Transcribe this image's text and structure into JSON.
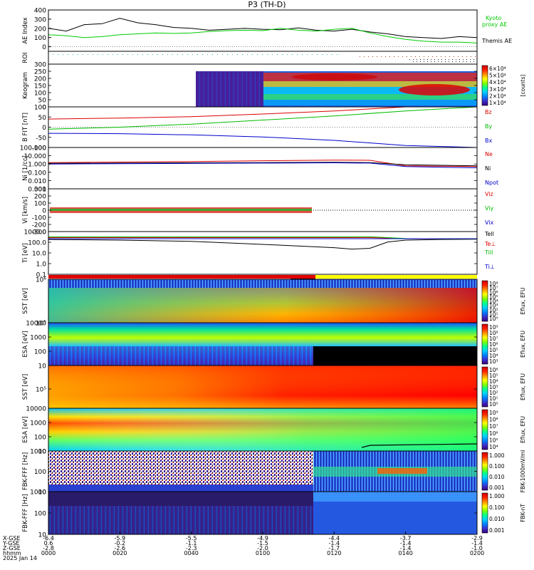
{
  "title": "P3 (TH-D)",
  "colors": {
    "kyoto": "#00cc00",
    "themis": "#000000",
    "red": "#dd0000",
    "green": "#00bb00",
    "blue": "#0000cc",
    "black": "#000000"
  },
  "colorbar_stops": [
    "#3a007a",
    "#3a2fd0",
    "#0080ff",
    "#00d0ff",
    "#00ff90",
    "#80ff00",
    "#ffff00",
    "#ff9000",
    "#ff2000",
    "#d00000"
  ],
  "x_axis": {
    "row_labels": [
      "X-GSE",
      "Y-GSE",
      "Z-GSE",
      "hhmm",
      "2025 Jan 14"
    ],
    "ticks": [
      {
        "x": "-6.4",
        "y": "0.6",
        "z": "-2.8",
        "t": "0000"
      },
      {
        "x": "-5.9",
        "y": "-0.2",
        "z": "-2.6",
        "t": "0020"
      },
      {
        "x": "-5.5",
        "y": "-1.1",
        "z": "-2.3",
        "t": "0040"
      },
      {
        "x": "-4.9",
        "y": "-1.5",
        "z": "-2.0",
        "t": "0100"
      },
      {
        "x": "-4.4",
        "y": "-1.4",
        "z": "-1.7",
        "t": "0120"
      },
      {
        "x": "-3.7",
        "y": "-1.4",
        "z": "-1.4",
        "t": "0140"
      },
      {
        "x": "-2.9",
        "y": "-1.4",
        "z": "-1.0",
        "t": "0200"
      }
    ]
  },
  "chart_data": [
    {
      "type": "line",
      "ylabel": "AE Index",
      "ylim": [
        -50,
        400
      ],
      "yticks": [
        "400",
        "300",
        "200",
        "100",
        "0"
      ],
      "x_minutes": [
        0,
        5,
        10,
        15,
        20,
        25,
        30,
        35,
        40,
        45,
        50,
        55,
        60,
        65,
        70,
        75,
        80,
        85,
        90,
        95,
        100,
        105,
        110,
        115,
        120
      ],
      "series": [
        {
          "name": "Themis AE",
          "color": "#000000",
          "values": [
            200,
            170,
            240,
            250,
            310,
            260,
            240,
            210,
            200,
            180,
            190,
            200,
            190,
            185,
            205,
            180,
            170,
            190,
            160,
            140,
            110,
            100,
            90,
            110,
            100
          ]
        },
        {
          "name": "Kyoto proxy AE",
          "color": "#00cc00",
          "values": [
            130,
            120,
            100,
            110,
            130,
            140,
            150,
            145,
            150,
            165,
            175,
            180,
            175,
            200,
            180,
            170,
            190,
            200,
            150,
            110,
            80,
            60,
            50,
            50,
            40
          ]
        }
      ],
      "legend": [
        "Kyoto",
        "proxy AE",
        "Themis AE"
      ]
    },
    {
      "type": "line",
      "ylabel": "ROI"
    },
    {
      "type": "heatmap",
      "ylabel": "Keogram",
      "ylim": [
        0,
        300
      ],
      "yticks": [
        "300",
        "250",
        "200",
        "150",
        "100",
        "50",
        "0"
      ],
      "colorbar_label": "[counts]",
      "colorbar_ticks": [
        "6×10⁴",
        "5×10⁴",
        "4×10⁴",
        "3×10⁴",
        "2×10⁴",
        "1×10⁴"
      ]
    },
    {
      "type": "line",
      "ylabel": "B FIT [nT]",
      "ylim": [
        -100,
        100
      ],
      "yticks": [
        "100",
        "50",
        "0",
        "-50",
        "-100"
      ],
      "x_minutes": [
        0,
        20,
        40,
        60,
        80,
        100,
        120
      ],
      "series": [
        {
          "name": "Bz",
          "color": "#dd0000",
          "values": [
            40,
            45,
            52,
            65,
            80,
            100,
            120
          ]
        },
        {
          "name": "By",
          "color": "#00bb00",
          "values": [
            -10,
            0,
            15,
            35,
            55,
            80,
            105
          ]
        },
        {
          "name": "Bx",
          "color": "#0000cc",
          "values": [
            -30,
            -32,
            -38,
            -48,
            -65,
            -90,
            -120
          ]
        }
      ]
    },
    {
      "type": "line",
      "ylabel": "Ni [1/cc]",
      "yticks": [
        "100.000",
        "10.000",
        "1.000",
        "0.100",
        "0.010",
        "0.001"
      ],
      "x_minutes": [
        0,
        20,
        40,
        60,
        80,
        90,
        100,
        110,
        120
      ],
      "series": [
        {
          "name": "Ne",
          "color": "#dd0000",
          "values": [
            1.5,
            1.7,
            2.0,
            2.5,
            3.0,
            2.8,
            0.6,
            0.55,
            0.5
          ]
        },
        {
          "name": "Ni",
          "color": "#000000",
          "values": [
            1.2,
            1.3,
            1.4,
            1.5,
            1.6,
            1.5,
            0.8,
            0.7,
            0.6
          ]
        },
        {
          "name": "Npot",
          "color": "#0000cc",
          "values": [
            1.0,
            1.1,
            1.2,
            1.3,
            1.4,
            1.3,
            0.5,
            0.4,
            0.35
          ]
        }
      ]
    },
    {
      "type": "line",
      "ylabel": "Vi [km/s]",
      "ylim": [
        -300,
        300
      ],
      "yticks": [
        "300",
        "200",
        "100",
        "0",
        "-100",
        "-200",
        "-300"
      ],
      "x_minutes": [
        0,
        20,
        40,
        60,
        80,
        100,
        120
      ],
      "series": [
        {
          "name": "Viz",
          "color": "#dd0000",
          "values": [
            0,
            0,
            0,
            0,
            0,
            0,
            0
          ]
        },
        {
          "name": "Viy",
          "color": "#00bb00",
          "values": [
            0,
            0,
            0,
            0,
            0,
            0,
            0
          ]
        },
        {
          "name": "Vix",
          "color": "#0000cc",
          "values": [
            0,
            0,
            0,
            0,
            0,
            0,
            0
          ]
        }
      ]
    },
    {
      "type": "line",
      "ylabel": "Ti [eV]",
      "yticks": [
        "1000.0",
        "100.0",
        "10.0",
        "1.0",
        "0.1"
      ],
      "x_minutes": [
        0,
        20,
        40,
        60,
        80,
        85,
        90,
        95,
        100,
        110,
        120
      ],
      "series": [
        {
          "name": "Tell",
          "color": "#000000",
          "values": [
            1200,
            1000,
            700,
            300,
            120,
            80,
            100,
            600,
            1000,
            1200,
            1300
          ]
        },
        {
          "name": "Te⊥",
          "color": "#dd0000",
          "values": [
            2000,
            2000,
            2000,
            2000,
            2000,
            2000,
            2000,
            1800,
            1500,
            1400,
            1400
          ]
        },
        {
          "name": "Till",
          "color": "#00bb00",
          "values": [
            2500,
            2500,
            2500,
            2500,
            2500,
            2500,
            2600,
            2000,
            1600,
            1400,
            1400
          ]
        },
        {
          "name": "Ti⊥",
          "color": "#0000cc",
          "values": [
            1500,
            1500,
            1500,
            1500,
            1500,
            1500,
            1500,
            1500,
            1500,
            1500,
            1500
          ]
        }
      ]
    },
    {
      "type": "heatmap",
      "ylabel": "SST [eV]",
      "yticks": [
        "10⁶",
        "10⁵"
      ],
      "colorbar_label": "Eflux, EFU",
      "colorbar_ticks": [
        "10⁸",
        "10⁷",
        "10⁶",
        "10⁵",
        "10⁴",
        "10³",
        "10²",
        "10¹",
        "10⁰"
      ]
    },
    {
      "type": "heatmap",
      "ylabel": "ESA [eV]",
      "yticks": [
        "10000",
        "1000",
        "100",
        "10"
      ],
      "colorbar_label": "Eflux, EFU",
      "colorbar_ticks": [
        "10⁹",
        "10⁸",
        "10⁷",
        "10⁶",
        "10⁵",
        "10⁴",
        "10³"
      ]
    },
    {
      "type": "heatmap",
      "ylabel": "SST [eV]",
      "yticks": [
        "10⁵"
      ],
      "colorbar_label": "Eflux, EFU",
      "colorbar_ticks": [
        "10⁶",
        "10⁵",
        "10⁴",
        "10³",
        "10²",
        "10¹",
        "10⁰"
      ]
    },
    {
      "type": "heatmap",
      "ylabel": "ESA [eV]",
      "yticks": [
        "10000",
        "1000",
        "100",
        "10"
      ],
      "colorbar_label": "Eflux, EFU",
      "colorbar_ticks": [
        "10⁹",
        "10⁸",
        "10⁷",
        "10⁶",
        "10⁵",
        "10⁴"
      ]
    },
    {
      "type": "heatmap",
      "ylabel": "FBK-FFF [Hz]",
      "yticks": [
        "1000",
        "100",
        "10"
      ],
      "colorbar_label": "FBK-1000mV/ml",
      "colorbar_ticks": [
        "1.000",
        "0.100",
        "0.010",
        "0.001"
      ]
    },
    {
      "type": "heatmap",
      "ylabel": "FBK-FFF [Hz]",
      "yticks": [
        "1000",
        "100",
        "10"
      ],
      "colorbar_label": "FBK-nT",
      "colorbar_ticks": [
        "1.000",
        "0.100",
        "0.010",
        "0.001"
      ]
    }
  ]
}
